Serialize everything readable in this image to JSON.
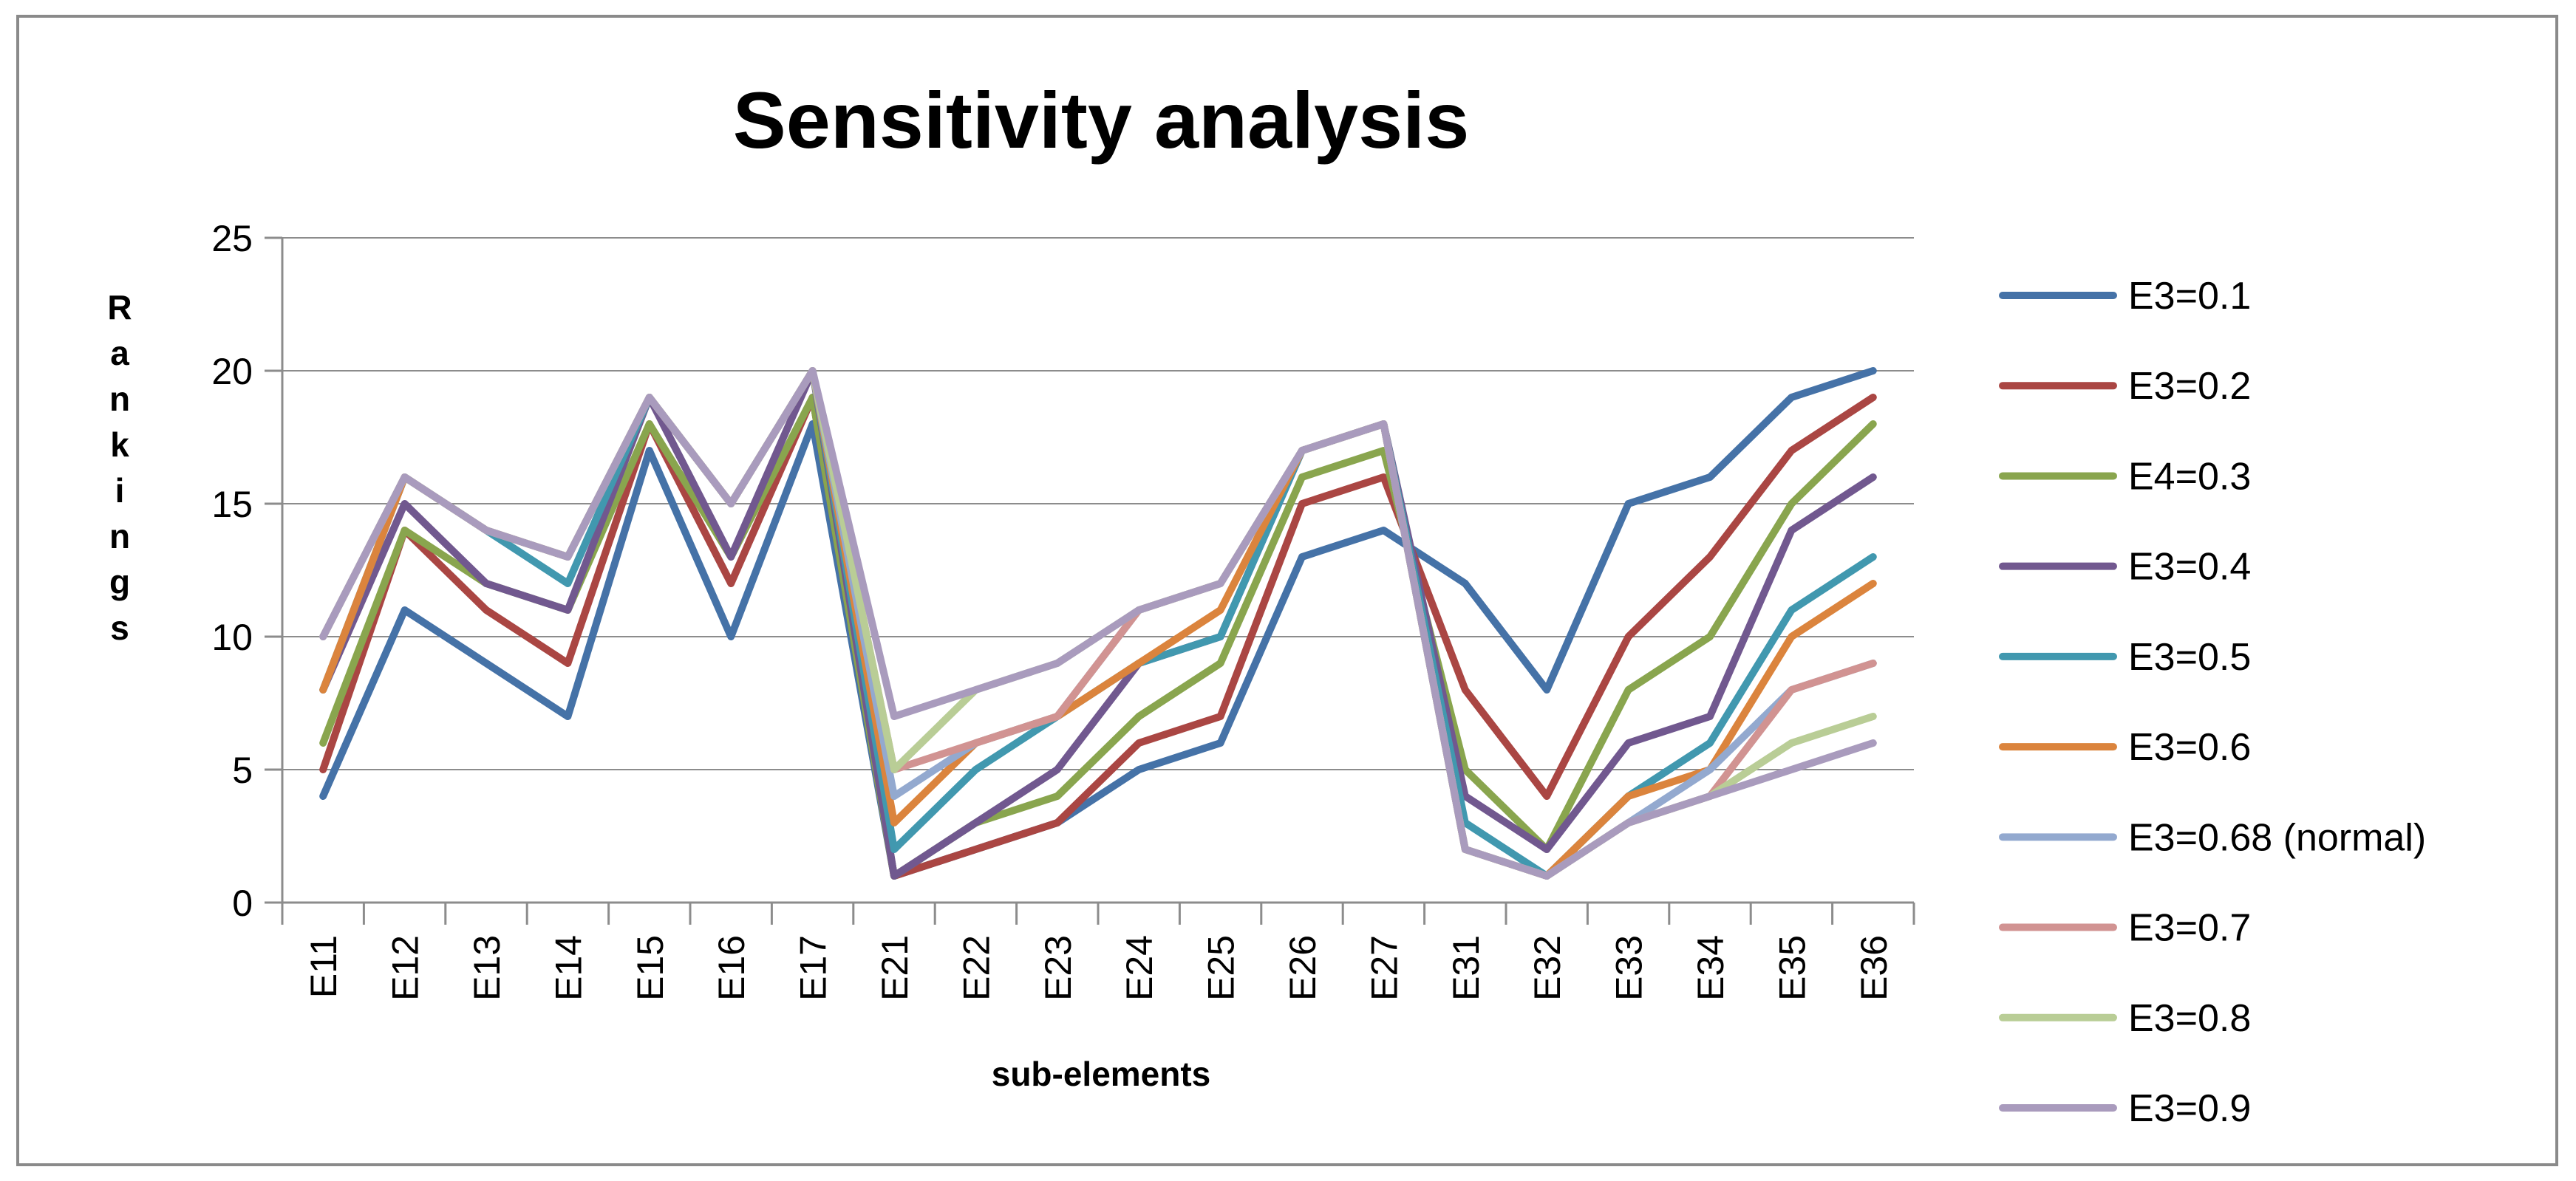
{
  "chart_data": {
    "type": "line",
    "title": "Sensitivity analysis",
    "xlabel": "sub-elements",
    "ylabel": "Rankings",
    "ylim": [
      0,
      25
    ],
    "yticks": [
      "0",
      "5",
      "10",
      "15",
      "20",
      "25"
    ],
    "grid": true,
    "legend_position": "right",
    "categories": [
      "E11",
      "E12",
      "E13",
      "E14",
      "E15",
      "E16",
      "E17",
      "E21",
      "E22",
      "E23",
      "E24",
      "E25",
      "E26",
      "E27",
      "E31",
      "E32",
      "E33",
      "E34",
      "E35",
      "E36"
    ],
    "series": [
      {
        "name": "E3=0.1",
        "color": "#4572A7",
        "values": [
          4,
          11,
          9,
          7,
          17,
          10,
          18,
          1,
          2,
          3,
          5,
          6,
          13,
          14,
          12,
          8,
          15,
          16,
          19,
          20
        ]
      },
      {
        "name": "E3=0.2",
        "color": "#AA4643",
        "values": [
          5,
          14,
          11,
          9,
          18,
          12,
          19,
          1,
          2,
          3,
          6,
          7,
          15,
          16,
          8,
          4,
          10,
          13,
          17,
          19
        ]
      },
      {
        "name": "E4=0.3",
        "color": "#89A54E",
        "values": [
          6,
          14,
          12,
          11,
          18,
          13,
          19,
          1,
          3,
          4,
          7,
          9,
          16,
          17,
          5,
          2,
          8,
          10,
          15,
          18
        ]
      },
      {
        "name": "E3=0.4",
        "color": "#71588F",
        "values": [
          8,
          15,
          12,
          11,
          19,
          13,
          20,
          1,
          3,
          5,
          9,
          10,
          17,
          18,
          4,
          2,
          6,
          7,
          14,
          16
        ]
      },
      {
        "name": "E3=0.5",
        "color": "#4198AF",
        "values": [
          8,
          16,
          14,
          12,
          19,
          15,
          20,
          2,
          5,
          7,
          9,
          10,
          17,
          18,
          3,
          1,
          4,
          6,
          11,
          13
        ]
      },
      {
        "name": "E3=0.6",
        "color": "#DB843D",
        "values": [
          8,
          16,
          14,
          13,
          19,
          15,
          20,
          3,
          6,
          7,
          9,
          11,
          17,
          18,
          2,
          1,
          4,
          5,
          10,
          12
        ]
      },
      {
        "name": "E3=0.68 (normal)",
        "color": "#93A9CF",
        "values": [
          10,
          16,
          14,
          13,
          19,
          15,
          20,
          4,
          6,
          7,
          11,
          12,
          17,
          18,
          2,
          1,
          3,
          5,
          8,
          9
        ]
      },
      {
        "name": "E3=0.7",
        "color": "#D19392",
        "values": [
          10,
          16,
          14,
          13,
          19,
          15,
          20,
          5,
          6,
          7,
          11,
          12,
          17,
          18,
          2,
          1,
          3,
          4,
          8,
          9
        ]
      },
      {
        "name": "E3=0.8",
        "color": "#B9CD96",
        "values": [
          10,
          16,
          14,
          13,
          19,
          15,
          20,
          5,
          8,
          9,
          11,
          12,
          17,
          18,
          2,
          1,
          3,
          4,
          6,
          7
        ]
      },
      {
        "name": "E3=0.9",
        "color": "#A99BBD",
        "values": [
          10,
          16,
          14,
          13,
          19,
          15,
          20,
          7,
          8,
          9,
          11,
          12,
          17,
          18,
          2,
          1,
          3,
          4,
          5,
          6
        ]
      }
    ]
  }
}
